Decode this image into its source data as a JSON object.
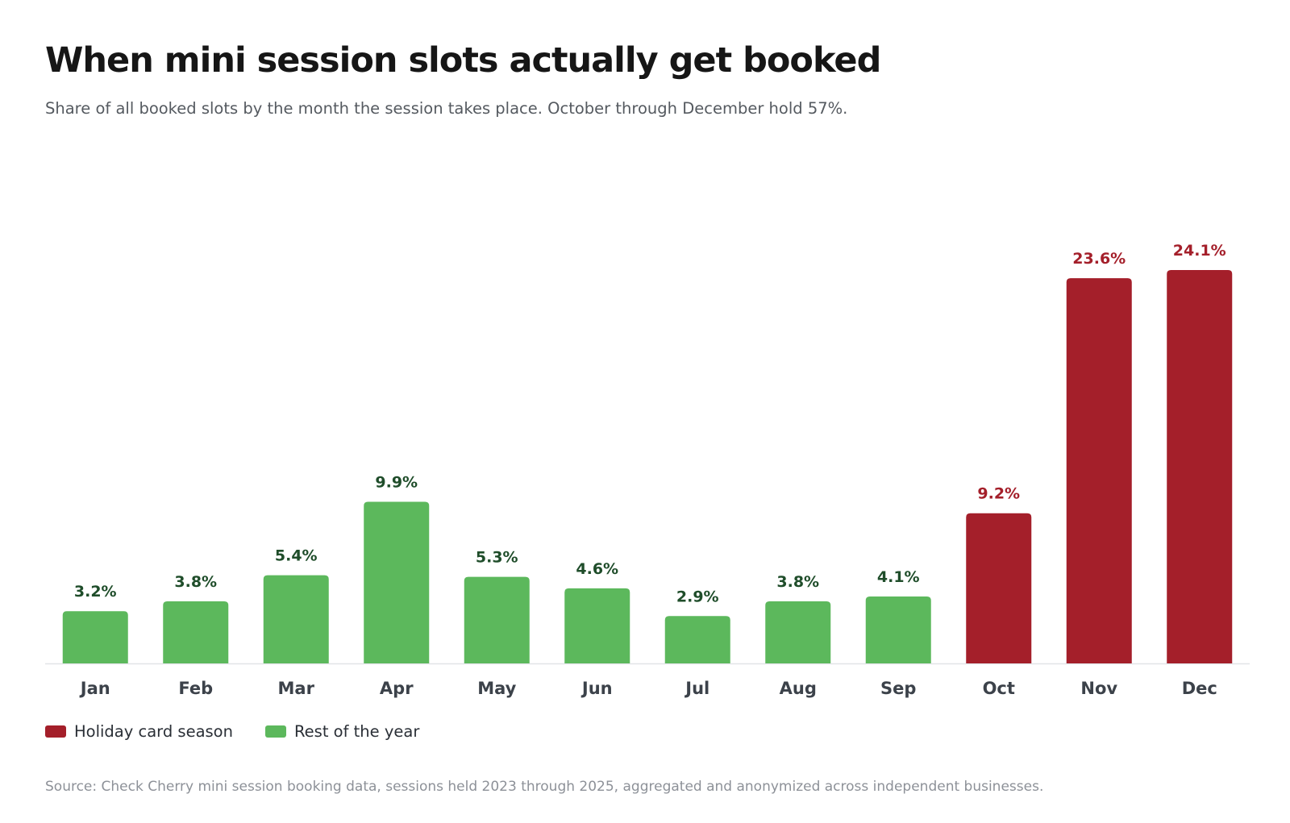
{
  "header": {
    "title": "When mini session slots actually get booked",
    "subtitle": "Share of all booked slots by the month the session takes place. October through December hold 57%."
  },
  "legend": {
    "items": [
      {
        "label": "Holiday card season",
        "color": "#a41f2a"
      },
      {
        "label": "Rest of the year",
        "color": "#5cb85c"
      }
    ]
  },
  "footer": {
    "source": "Source: Check Cherry mini session booking data, sessions held 2023 through 2025, aggregated and anonymized across independent businesses."
  },
  "colors": {
    "holiday_bar": "#a41f2a",
    "holiday_label": "#a41f2a",
    "rest_bar": "#5cb85c",
    "rest_label": "#1f4d2a",
    "axis_label": "#3c424a",
    "baseline": "#e2e4e7"
  },
  "chart_data": {
    "type": "bar",
    "categories": [
      "Jan",
      "Feb",
      "Mar",
      "Apr",
      "May",
      "Jun",
      "Jul",
      "Aug",
      "Sep",
      "Oct",
      "Nov",
      "Dec"
    ],
    "values": [
      3.2,
      3.8,
      5.4,
      9.9,
      5.3,
      4.6,
      2.9,
      3.8,
      4.1,
      9.2,
      23.6,
      24.1
    ],
    "value_labels": [
      "3.2%",
      "3.8%",
      "5.4%",
      "9.9%",
      "5.3%",
      "4.6%",
      "2.9%",
      "3.8%",
      "4.1%",
      "9.2%",
      "23.6%",
      "24.1%"
    ],
    "groups": [
      "Rest of the year",
      "Rest of the year",
      "Rest of the year",
      "Rest of the year",
      "Rest of the year",
      "Rest of the year",
      "Rest of the year",
      "Rest of the year",
      "Rest of the year",
      "Holiday card season",
      "Holiday card season",
      "Holiday card season"
    ],
    "ylim": [
      0,
      24.1
    ],
    "grid": false,
    "legend_position": "bottom-left"
  }
}
